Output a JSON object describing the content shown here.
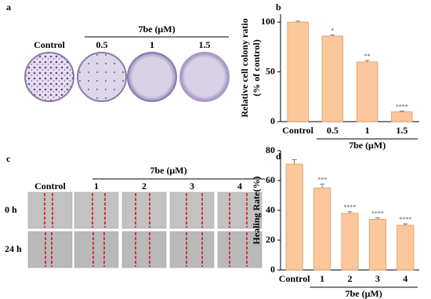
{
  "panels": {
    "a": {
      "label": "a",
      "group": "7be (μM)",
      "columns": [
        "Control",
        "0.5",
        "1",
        "1.5"
      ]
    },
    "c": {
      "label": "c",
      "group": "7be (μM)",
      "columns": [
        "Control",
        "1",
        "2",
        "3",
        "4"
      ],
      "rows": [
        "0 h",
        "24 h"
      ]
    }
  },
  "chart_data": [
    {
      "type": "bar",
      "label": "b",
      "ylabel": [
        "Relative cell colony ratio",
        "(% of control)"
      ],
      "group": "7be (μM)",
      "categories": [
        "Control",
        "0.5",
        "1",
        "1.5"
      ],
      "values": [
        100,
        86,
        60,
        10
      ],
      "errors": [
        1,
        1,
        1.5,
        0.5
      ],
      "annotations": [
        null,
        "*",
        "**",
        "****"
      ],
      "color": "#fbc79b",
      "edge": "#e09a64",
      "ylim": [
        0,
        108
      ],
      "yticks": [
        0,
        50,
        100
      ]
    },
    {
      "type": "bar",
      "label": "d",
      "ylabel": [
        "Healing Rate(%)"
      ],
      "group": "7be (μM)",
      "categories": [
        "Control",
        "1",
        "2",
        "3",
        "4"
      ],
      "values": [
        71,
        55,
        38,
        34,
        30
      ],
      "errors": [
        3,
        2.5,
        1,
        1,
        1
      ],
      "annotations": [
        null,
        "***",
        "****",
        "****",
        "****"
      ],
      "color": "#fbc79b",
      "edge": "#e09a64",
      "ylim": [
        0,
        80
      ],
      "yticks": [
        0,
        20,
        40,
        60,
        80
      ]
    }
  ]
}
